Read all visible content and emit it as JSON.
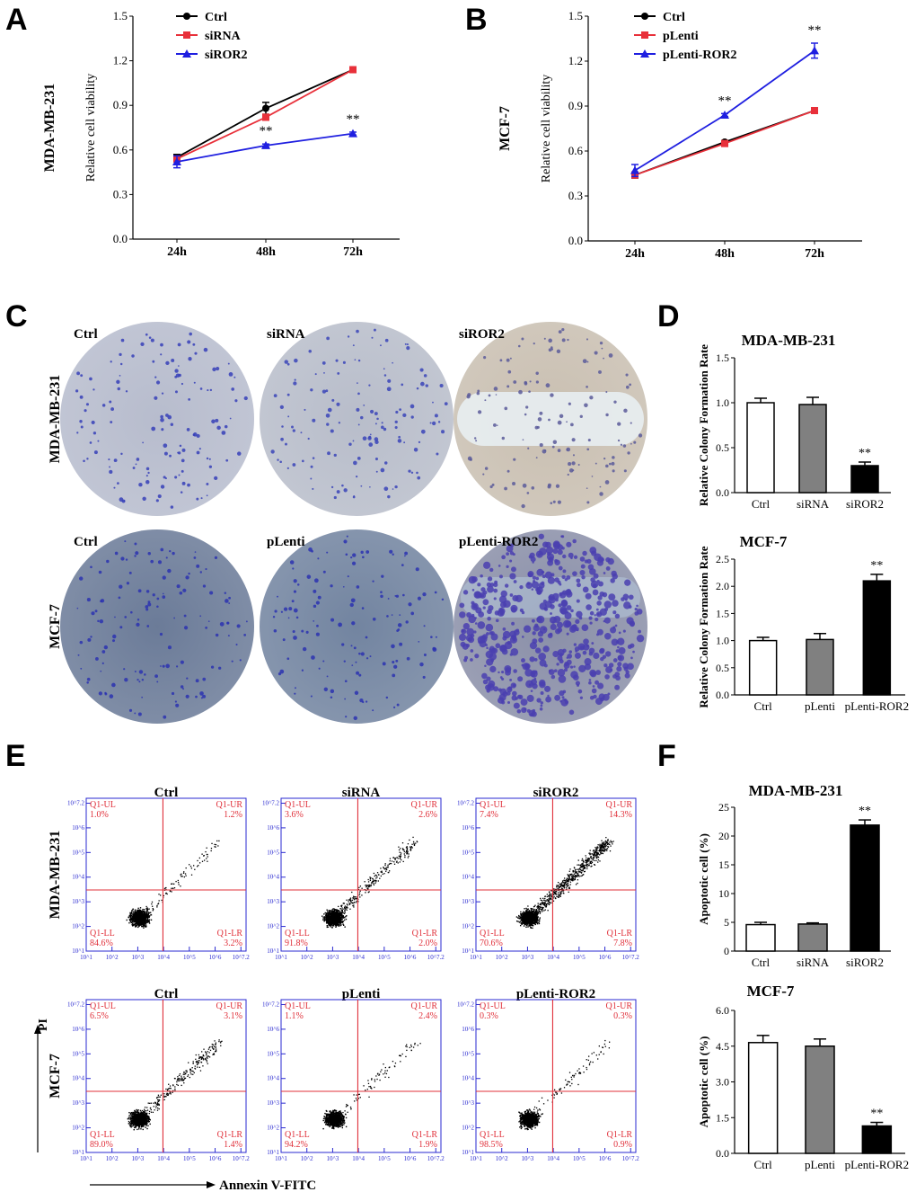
{
  "panels": {
    "A": "A",
    "B": "B",
    "C": "C",
    "D": "D",
    "E": "E",
    "F": "F"
  },
  "chart_data": [
    {
      "id": "A",
      "type": "line",
      "ylabel_outer": "MDA-MB-231",
      "ylabel": "Relative cell viability",
      "categories": [
        "24h",
        "48h",
        "72h"
      ],
      "ylim": [
        0,
        1.5
      ],
      "yticks": [
        "0.0",
        "0.3",
        "0.6",
        "0.9",
        "1.2",
        "1.5"
      ],
      "series": [
        {
          "name": "Ctrl",
          "color": "#000000",
          "marker": "circle",
          "values": [
            0.55,
            0.88,
            1.14
          ],
          "errors": [
            0.02,
            0.04,
            0.01
          ]
        },
        {
          "name": "siRNA",
          "color": "#e8303a",
          "marker": "square",
          "values": [
            0.54,
            0.82,
            1.14
          ],
          "errors": [
            0.02,
            0.02,
            0.01
          ]
        },
        {
          "name": "siROR2",
          "color": "#1f1fe0",
          "marker": "triangle",
          "values": [
            0.52,
            0.63,
            0.71
          ],
          "errors": [
            0.04,
            0.01,
            0.01
          ]
        }
      ],
      "annotations": [
        {
          "series": 2,
          "index": 1,
          "text": "**"
        },
        {
          "series": 2,
          "index": 2,
          "text": "**"
        }
      ]
    },
    {
      "id": "B",
      "type": "line",
      "ylabel_outer": "MCF-7",
      "ylabel": "Relative cell viability",
      "categories": [
        "24h",
        "48h",
        "72h"
      ],
      "ylim": [
        0,
        1.5
      ],
      "yticks": [
        "0.0",
        "0.3",
        "0.6",
        "0.9",
        "1.2",
        "1.5"
      ],
      "series": [
        {
          "name": "Ctrl",
          "color": "#000000",
          "marker": "circle",
          "values": [
            0.44,
            0.66,
            0.87
          ],
          "errors": [
            0.02,
            0.01,
            0.01
          ]
        },
        {
          "name": "pLenti",
          "color": "#e8303a",
          "marker": "square",
          "values": [
            0.44,
            0.65,
            0.87
          ],
          "errors": [
            0.02,
            0.01,
            0.01
          ]
        },
        {
          "name": "pLenti-ROR2",
          "color": "#1f1fe0",
          "marker": "triangle",
          "values": [
            0.47,
            0.84,
            1.27
          ],
          "errors": [
            0.04,
            0.01,
            0.05
          ]
        }
      ],
      "annotations": [
        {
          "series": 2,
          "index": 1,
          "text": "**"
        },
        {
          "series": 2,
          "index": 2,
          "text": "**"
        }
      ]
    },
    {
      "id": "D1",
      "type": "bar",
      "title": "MDA-MB-231",
      "ylabel": "Relative Colony Formation Rate",
      "categories": [
        "Ctrl",
        "siRNA",
        "siROR2"
      ],
      "values": [
        1.0,
        0.98,
        0.3
      ],
      "errors": [
        0.05,
        0.08,
        0.04
      ],
      "colors": [
        "#ffffff",
        "#808080",
        "#000000"
      ],
      "ylim": [
        0,
        1.5
      ],
      "yticks": [
        "0.0",
        "0.5",
        "1.0",
        "1.5"
      ],
      "annotations": [
        {
          "index": 2,
          "text": "**"
        }
      ]
    },
    {
      "id": "D2",
      "type": "bar",
      "title": "MCF-7",
      "ylabel": "Relative Colony Formation Rate",
      "categories": [
        "Ctrl",
        "pLenti",
        "pLenti-ROR2"
      ],
      "values": [
        1.0,
        1.02,
        2.1
      ],
      "errors": [
        0.06,
        0.11,
        0.12
      ],
      "colors": [
        "#ffffff",
        "#808080",
        "#000000"
      ],
      "ylim": [
        0,
        2.5
      ],
      "yticks": [
        "0.0",
        "0.5",
        "1.0",
        "1.5",
        "2.0",
        "2.5"
      ],
      "annotations": [
        {
          "index": 2,
          "text": "**"
        }
      ]
    },
    {
      "id": "F1",
      "type": "bar",
      "title": "MDA-MB-231",
      "ylabel": "Apoptotic cell (%)",
      "categories": [
        "Ctrl",
        "siRNA",
        "siROR2"
      ],
      "values": [
        4.6,
        4.7,
        21.9
      ],
      "errors": [
        0.4,
        0.2,
        0.9
      ],
      "colors": [
        "#ffffff",
        "#808080",
        "#000000"
      ],
      "ylim": [
        0,
        25
      ],
      "yticks": [
        "0",
        "5",
        "10",
        "15",
        "20",
        "25"
      ],
      "annotations": [
        {
          "index": 2,
          "text": "**"
        }
      ]
    },
    {
      "id": "F2",
      "type": "bar",
      "title": "MCF-7",
      "ylabel": "Apoptotic cell (%)",
      "categories": [
        "Ctrl",
        "pLenti",
        "pLenti-ROR2"
      ],
      "values": [
        4.65,
        4.5,
        1.15
      ],
      "errors": [
        0.3,
        0.3,
        0.15
      ],
      "colors": [
        "#ffffff",
        "#808080",
        "#000000"
      ],
      "ylim": [
        0,
        6.0
      ],
      "yticks": [
        "0.0",
        "1.5",
        "3.0",
        "4.5",
        "6.0"
      ],
      "annotations": [
        {
          "index": 2,
          "text": "**"
        }
      ]
    }
  ],
  "colony": {
    "rows": [
      {
        "label": "MDA-MB-231",
        "dishes": [
          {
            "title": "Ctrl",
            "bg": "#b7bccd",
            "dot": "#3640b8",
            "density": "low"
          },
          {
            "title": "siRNA",
            "bg": "#b8bdca",
            "dot": "#3a44b8",
            "density": "low"
          },
          {
            "title": "siROR2",
            "bg": "#c9bfb1",
            "dot": "#5a5a9a",
            "density": "low"
          }
        ]
      },
      {
        "label": "MCF-7",
        "dishes": [
          {
            "title": "Ctrl",
            "bg": "#6b7b98",
            "dot": "#2b32b0",
            "density": "low"
          },
          {
            "title": "pLenti",
            "bg": "#7284a0",
            "dot": "#2b32b0",
            "density": "low"
          },
          {
            "title": "pLenti-ROR2",
            "bg": "#8a8fa8",
            "dot": "#4a3fb0",
            "density": "high"
          }
        ]
      }
    ]
  },
  "flow": {
    "xlabel": "Annexin V-FITC",
    "ylabel": "PI",
    "rows": [
      {
        "label": "MDA-MB-231",
        "plots": [
          {
            "title": "Ctrl",
            "UL": "1.0%",
            "UR": "1.2%",
            "LL": "84.6%",
            "LR": "3.2%",
            "spread": "low"
          },
          {
            "title": "siRNA",
            "UL": "3.6%",
            "UR": "2.6%",
            "LL": "91.8%",
            "LR": "2.0%",
            "spread": "mid"
          },
          {
            "title": "siROR2",
            "UL": "7.4%",
            "UR": "14.3%",
            "LL": "70.6%",
            "LR": "7.8%",
            "spread": "high"
          }
        ]
      },
      {
        "label": "MCF-7",
        "plots": [
          {
            "title": "Ctrl",
            "UL": "6.5%",
            "UR": "3.1%",
            "LL": "89.0%",
            "LR": "1.4%",
            "spread": "mid"
          },
          {
            "title": "pLenti",
            "UL": "1.1%",
            "UR": "2.4%",
            "LL": "94.2%",
            "LR": "1.9%",
            "spread": "low"
          },
          {
            "title": "pLenti-ROR2",
            "UL": "0.3%",
            "UR": "0.3%",
            "LL": "98.5%",
            "LR": "0.9%",
            "spread": "low"
          }
        ]
      }
    ],
    "quad_names": {
      "UL": "Q1-UL",
      "UR": "Q1-UR",
      "LL": "Q1-LL",
      "LR": "Q1-LR"
    },
    "tick_labels": [
      "10^1",
      "10^2",
      "10^3",
      "10^4",
      "10^5",
      "10^6",
      "10^7.2"
    ]
  }
}
